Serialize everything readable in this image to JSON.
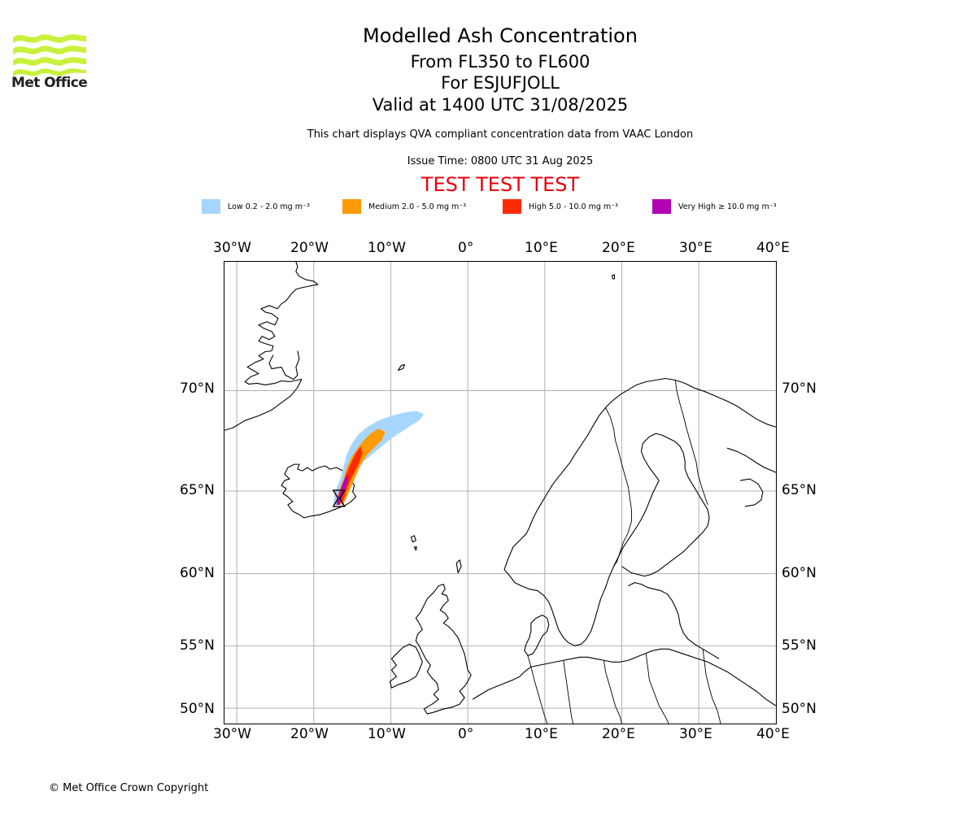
{
  "header": {
    "logo_text": "Met Office",
    "title": "Modelled Ash Concentration",
    "level": "From FL350 to FL600",
    "volcano": "For ESJUFJOLL",
    "valid": "Valid at 1400 UTC 31/08/2025",
    "note": "This chart displays QVA compliant concentration data from VAAC London",
    "issue_time": "Issue Time: 0800 UTC 31 Aug 2025",
    "test_banner": "TEST TEST TEST"
  },
  "legend": [
    {
      "label": "Low 0.2 - 2.0 mg m⁻³",
      "color": "#a6d6fd"
    },
    {
      "label": "Medium 2.0 - 5.0 mg m⁻³",
      "color": "#ff9b00"
    },
    {
      "label": "High 5.0 - 10.0 mg m⁻³",
      "color": "#ff2b00"
    },
    {
      "label": "Very High ≥ 10.0 mg m⁻³",
      "color": "#b300b3"
    }
  ],
  "map": {
    "lon_ticks": [
      "30°W",
      "20°W",
      "10°W",
      "0°",
      "10°E",
      "20°E",
      "30°E",
      "40°E"
    ],
    "lat_ticks": [
      "70°N",
      "65°N",
      "60°N",
      "55°N",
      "50°N"
    ],
    "lon_range": [
      -31.5,
      40
    ],
    "lat_range": [
      49,
      75
    ],
    "grid": true,
    "volcano_marker": "hourglass-icon"
  },
  "footer": {
    "copyright": "© Met Office Crown Copyright"
  }
}
